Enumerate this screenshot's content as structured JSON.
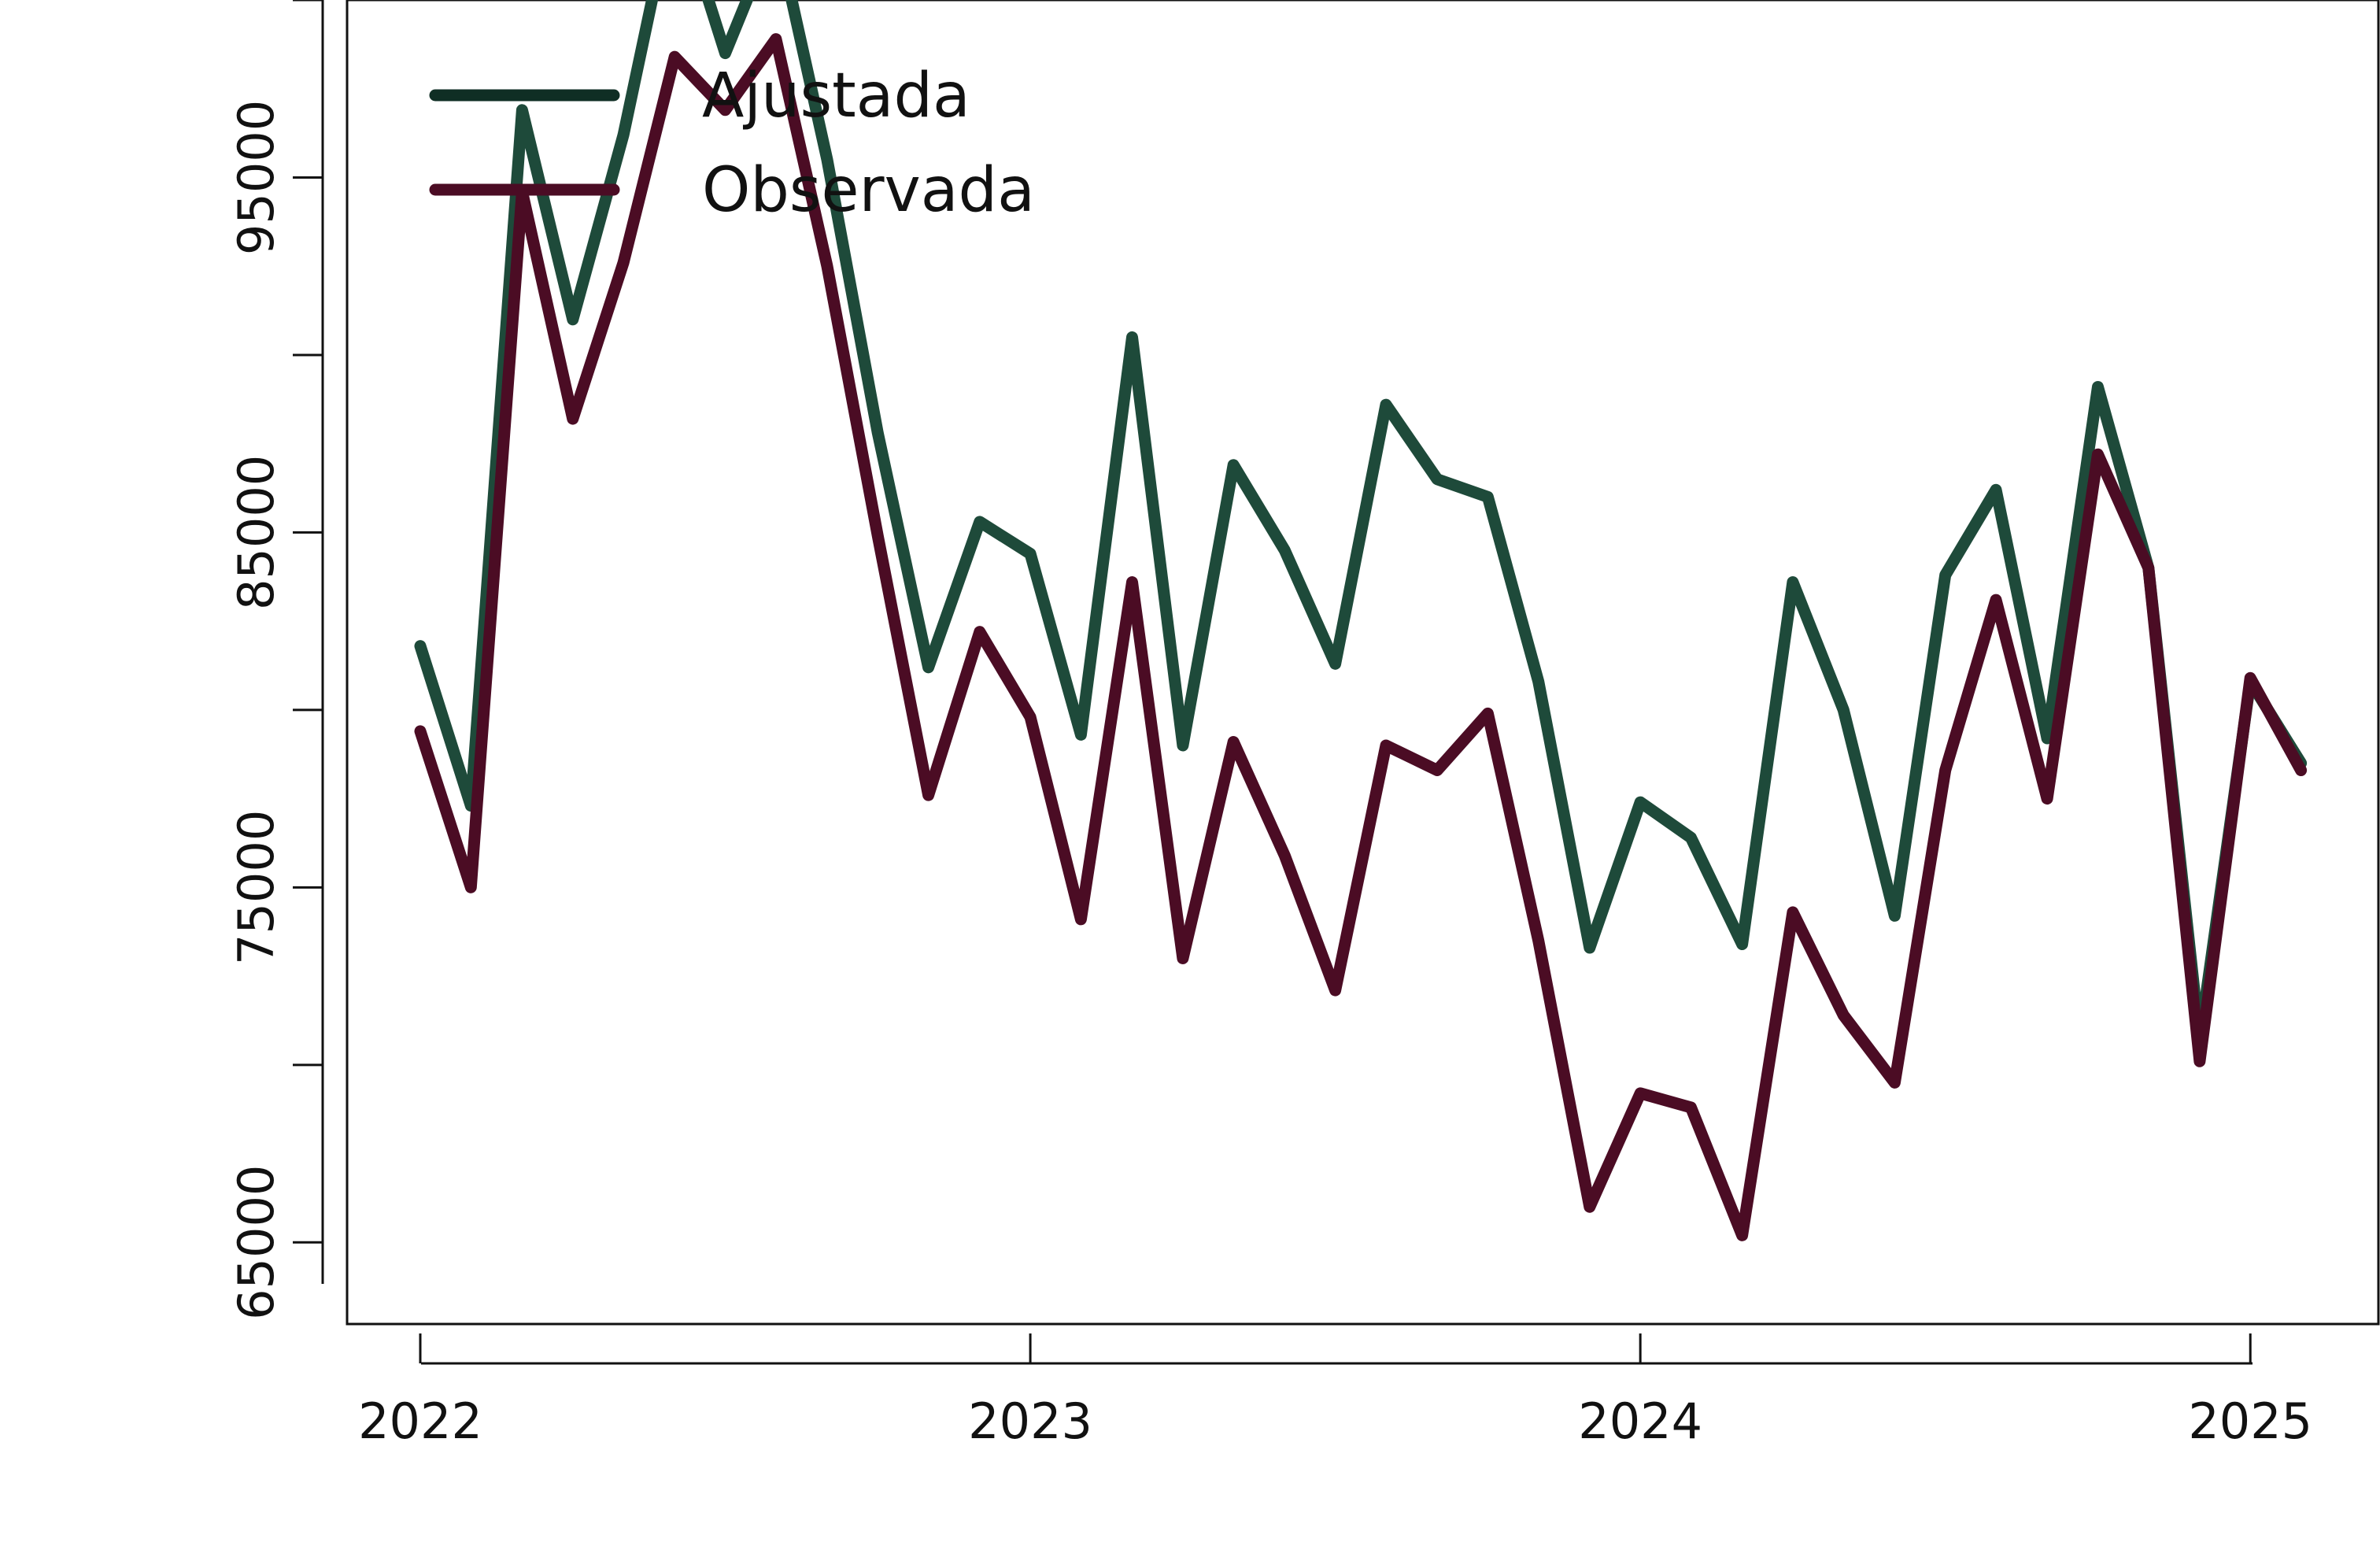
{
  "chart_data": {
    "type": "line",
    "title": "",
    "xlabel": "",
    "ylabel": "",
    "x_start": "2022-01",
    "x_tick_labels": [
      "2022",
      "2023",
      "2024",
      "2025"
    ],
    "x_tick_values": [
      2022,
      2023,
      2024,
      2025
    ],
    "xlim": [
      2021.88,
      2025.21
    ],
    "y_tick_labels": [
      "65000",
      "75000",
      "85000",
      "95000"
    ],
    "y_tick_values": [
      65000,
      70000,
      75000,
      80000,
      85000,
      90000,
      95000,
      100000
    ],
    "ylim": [
      62700,
      100000
    ],
    "grid": false,
    "legend_position": "top-left",
    "x": [
      2022.0,
      2022.083,
      2022.167,
      2022.25,
      2022.333,
      2022.417,
      2022.5,
      2022.583,
      2022.667,
      2022.75,
      2022.833,
      2022.917,
      2023.0,
      2023.083,
      2023.167,
      2023.25,
      2023.333,
      2023.417,
      2023.5,
      2023.583,
      2023.667,
      2023.75,
      2023.833,
      2023.917,
      2024.0,
      2024.083,
      2024.167,
      2024.25,
      2024.333,
      2024.417,
      2024.5,
      2024.583,
      2024.667,
      2024.75,
      2024.833,
      2024.917,
      2025.0,
      2025.083
    ],
    "series": [
      {
        "name": "Ajustada",
        "color": "#1e4a3a",
        "values": [
          81800,
          77300,
          96900,
          91000,
          96200,
          103000,
          98500,
          102000,
          95500,
          87800,
          81200,
          85300,
          84400,
          79300,
          90500,
          79000,
          86900,
          84500,
          81300,
          88600,
          86500,
          86000,
          80800,
          73300,
          77400,
          76400,
          73400,
          83600,
          80000,
          74200,
          83800,
          86200,
          79200,
          89100,
          84000,
          70700,
          80800,
          78500
        ]
      },
      {
        "name": "Observada",
        "color": "#4b0c24",
        "values": [
          79400,
          75000,
          94600,
          88200,
          92600,
          98400,
          96900,
          98900,
          92500,
          84900,
          77600,
          82200,
          79800,
          74100,
          83600,
          73000,
          79100,
          75900,
          72100,
          79000,
          78300,
          79900,
          73500,
          66000,
          69200,
          68800,
          65200,
          74300,
          71400,
          69500,
          78300,
          83100,
          77500,
          87200,
          84000,
          70100,
          80900,
          78300
        ]
      }
    ]
  }
}
